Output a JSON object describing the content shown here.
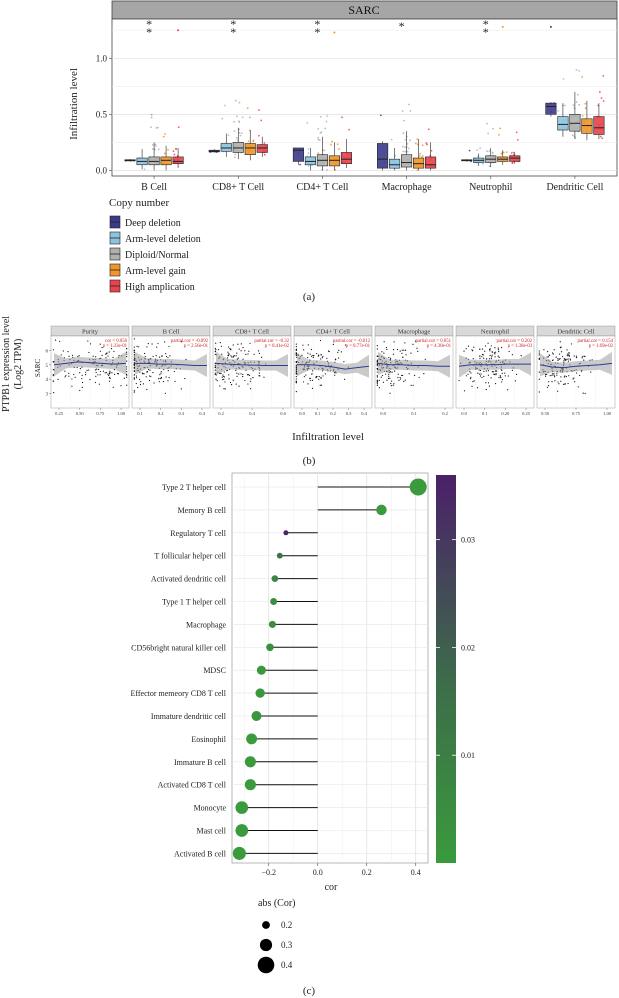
{
  "panel_labels": {
    "a": "(a)",
    "b": "(b)",
    "c": "(c)"
  },
  "chart_data": [
    {
      "type": "box",
      "panel": "(a)",
      "title": "SARC",
      "ylabel": "Infiltration level",
      "ylim": [
        -0.05,
        1.35
      ],
      "yticks": [
        0.0,
        0.5,
        1.0
      ],
      "ytick_labels": [
        "0.0",
        "0.5",
        "1.0"
      ],
      "grid": true,
      "categories": [
        "B Cell",
        "CD8+ T Cell",
        "CD4+ T Cell",
        "Macrophage",
        "Neutrophil",
        "Dendritic Cell"
      ],
      "significance": [
        "**",
        "**",
        "**",
        "*",
        "**",
        ""
      ],
      "legend_title": "Copy number",
      "legend_position": "bottom-left",
      "series": [
        {
          "name": "Deep deletion",
          "color": "#3d3a8c",
          "boxes": [
            [
              0.08,
              0.085,
              0.09,
              0.095,
              0.1
            ],
            [
              0.16,
              0.165,
              0.17,
              0.18,
              0.19
            ],
            [
              0.05,
              0.08,
              0.18,
              0.2,
              0.2
            ],
            [
              0.0,
              0.02,
              0.1,
              0.24,
              0.26
            ],
            [
              0.08,
              0.085,
              0.09,
              0.095,
              0.1
            ],
            [
              0.48,
              0.5,
              0.57,
              0.6,
              0.6
            ]
          ]
        },
        {
          "name": "Arm-level deletion",
          "color": "#8cc4e0",
          "boxes": [
            [
              0.01,
              0.05,
              0.08,
              0.11,
              0.19
            ],
            [
              0.12,
              0.17,
              0.2,
              0.24,
              0.33
            ],
            [
              0.0,
              0.05,
              0.08,
              0.12,
              0.2
            ],
            [
              0.0,
              0.02,
              0.05,
              0.1,
              0.2
            ],
            [
              0.04,
              0.07,
              0.09,
              0.11,
              0.15
            ],
            [
              0.3,
              0.36,
              0.41,
              0.48,
              0.6
            ]
          ]
        },
        {
          "name": "Diploid/Normal",
          "color": "#b0b0b0",
          "boxes": [
            [
              0.0,
              0.05,
              0.08,
              0.12,
              0.25
            ],
            [
              0.1,
              0.16,
              0.2,
              0.25,
              0.38
            ],
            [
              0.0,
              0.04,
              0.09,
              0.14,
              0.3
            ],
            [
              0.0,
              0.03,
              0.07,
              0.14,
              0.35
            ],
            [
              0.03,
              0.07,
              0.1,
              0.13,
              0.2
            ],
            [
              0.28,
              0.35,
              0.42,
              0.5,
              0.7
            ]
          ]
        },
        {
          "name": "Arm-level gain",
          "color": "#f0962a",
          "boxes": [
            [
              0.0,
              0.05,
              0.09,
              0.12,
              0.22
            ],
            [
              0.09,
              0.14,
              0.2,
              0.24,
              0.36
            ],
            [
              0.0,
              0.04,
              0.09,
              0.13,
              0.25
            ],
            [
              0.0,
              0.02,
              0.06,
              0.11,
              0.28
            ],
            [
              0.05,
              0.08,
              0.1,
              0.12,
              0.18
            ],
            [
              0.27,
              0.33,
              0.4,
              0.46,
              0.62
            ]
          ]
        },
        {
          "name": "High amplication",
          "color": "#e8424b",
          "boxes": [
            [
              0.02,
              0.06,
              0.08,
              0.12,
              0.2
            ],
            [
              0.12,
              0.16,
              0.2,
              0.23,
              0.3
            ],
            [
              0.02,
              0.06,
              0.1,
              0.16,
              0.28
            ],
            [
              0.0,
              0.02,
              0.05,
              0.12,
              0.25
            ],
            [
              0.06,
              0.08,
              0.11,
              0.13,
              0.16
            ],
            [
              0.28,
              0.32,
              0.38,
              0.48,
              0.6
            ]
          ]
        }
      ]
    },
    {
      "type": "scatter",
      "panel": "(b)",
      "ylabel_lines": [
        "PTPB1 expression level",
        "(Log2 TPM)"
      ],
      "xlabel": "Infiltration level",
      "row_label": "SARC",
      "ylim": [
        2.0,
        7.0
      ],
      "yticks": [
        3,
        4,
        5,
        6
      ],
      "facets": [
        {
          "title": "Purity",
          "stat1": "cor = 0.056",
          "stat2": "p = 1.33e-01",
          "xticks": [
            "0.25",
            "0.50",
            "0.75",
            "1.00"
          ],
          "trend": [
            5.0,
            5.1,
            5.2,
            5.15,
            5.1,
            5.05,
            5.1
          ]
        },
        {
          "title": "B Cell",
          "stat1": "partial.cor = -0.092",
          "stat2": "p = 2.56e-01",
          "xticks": [
            "0.1",
            "0.2",
            "0.3",
            "0.4"
          ],
          "trend": [
            5.1,
            5.1,
            5.05,
            5.05,
            5.0,
            4.95,
            4.95
          ]
        },
        {
          "title": "CD8+ T Cell",
          "stat1": "partial.cor = -0.32",
          "stat2": "p = 8.41e-02",
          "xticks": [
            "0.2",
            "0.4",
            "0.6"
          ],
          "trend": [
            5.1,
            5.05,
            5.0,
            4.98,
            4.95,
            4.95,
            4.95
          ]
        },
        {
          "title": "CD4+ T Cell",
          "stat1": "partial.cor = -0.012",
          "stat2": "p = 8.77e-01",
          "xticks": [
            "0.0",
            "0.1",
            "0.2",
            "0.3",
            "0.4"
          ],
          "trend": [
            5.0,
            5.0,
            4.95,
            4.85,
            4.7,
            4.8,
            4.9
          ]
        },
        {
          "title": "Macrophage",
          "stat1": "partial.cor = 0.051",
          "stat2": "p = 4.30e-01",
          "xticks": [
            "0.0",
            "0.1",
            "0.2"
          ],
          "trend": [
            5.1,
            5.0,
            5.0,
            4.95,
            4.95,
            4.9,
            4.9
          ]
        },
        {
          "title": "Neutrophil",
          "stat1": "partial.cor = 0.202",
          "stat2": "p = 1.38e-03",
          "xticks": [
            "0.0",
            "0.1",
            "0.20",
            "0.25"
          ],
          "trend": [
            4.9,
            5.0,
            5.0,
            5.0,
            5.05,
            5.05,
            5.05
          ]
        },
        {
          "title": "Dendritic Cell",
          "stat1": "partial.cor = 0.154",
          "stat2": "p = 1.69e-02",
          "xticks": [
            "0.50",
            "0.75",
            "1.00"
          ],
          "trend": [
            5.0,
            4.85,
            4.8,
            4.9,
            4.95,
            5.0,
            5.1
          ]
        }
      ]
    },
    {
      "type": "lollipop",
      "panel": "(c)",
      "xlabel": "cor",
      "xlim": [
        -0.35,
        0.45
      ],
      "xticks": [
        -0.2,
        0.0,
        0.2,
        0.4
      ],
      "xtick_labels": [
        "−0.2",
        "0.0",
        "0.2",
        "0.4"
      ],
      "categories": [
        "Type 2 T helper cell",
        "Memory B cell",
        "Regulatory T cell",
        "T follicular helper cell",
        "Activated dendritic cell",
        "Type 1 T helper cell",
        "Macrophage",
        "CD56bright natural killer cell",
        "MDSC",
        "Effector memeory CD8 T cell",
        "Immature dendritic cell",
        "Eosinophil",
        "Immature  B cell",
        "Activated CD8 T cell",
        "Monocyte",
        "Mast cell",
        "Activated B cell"
      ],
      "values": [
        0.41,
        0.26,
        -0.13,
        -0.155,
        -0.175,
        -0.18,
        -0.185,
        -0.195,
        -0.23,
        -0.235,
        -0.25,
        -0.27,
        -0.275,
        -0.275,
        -0.31,
        -0.31,
        -0.32
      ],
      "pvalues": [
        0.0,
        0.0,
        0.033,
        0.012,
        0.006,
        0.004,
        0.004,
        0.003,
        0.001,
        0.001,
        0.001,
        0.0,
        0.0,
        0.0,
        0.0,
        0.0,
        0.0
      ],
      "colorbar_ticks": [
        0.01,
        0.02,
        0.03
      ],
      "colorbar_tick_labels": [
        "0.01",
        "0.02",
        "0.03"
      ],
      "colorbar_range": [
        0.0,
        0.036
      ],
      "colorbar_low": "#3a9a3c",
      "colorbar_high": "#4a2068",
      "size_legend_title": "abs (Cor)",
      "size_legend": [
        0.2,
        0.3,
        0.4
      ],
      "size_legend_labels": [
        "0.2",
        "0.3",
        "0.4"
      ]
    }
  ]
}
